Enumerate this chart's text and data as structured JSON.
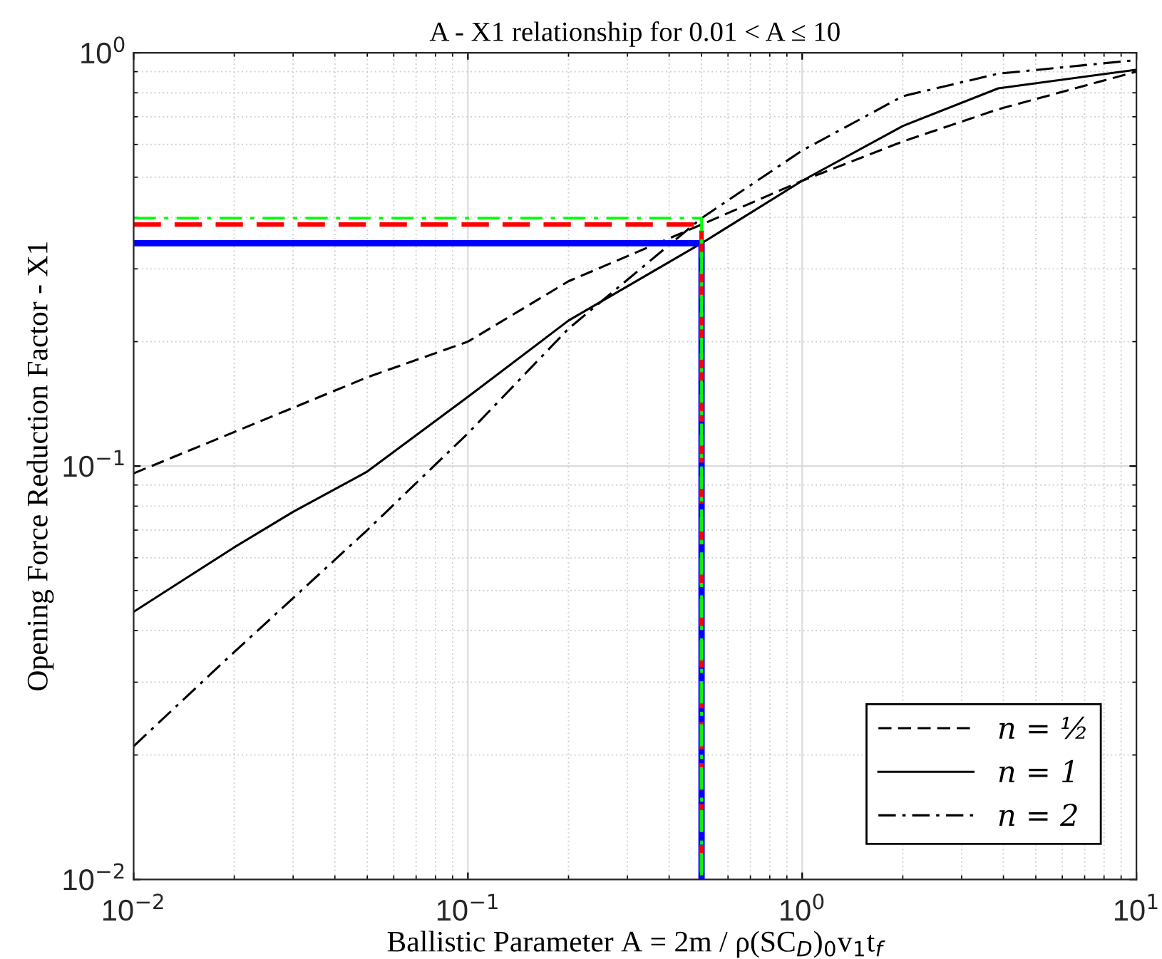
{
  "chart_data": {
    "type": "line",
    "title": "A - X1 relationship for 0.01 < A ≤ 10",
    "xlabel": "Ballistic Parameter A = 2m / ρ(SC$_{D}$)$_{0}$v$_{1}$t$_{f}$",
    "ylabel": "Opening Force Reduction Factor - X1",
    "log": "xy",
    "xlim": [
      0.01,
      10
    ],
    "ylim": [
      0.01,
      1
    ],
    "xticks": [
      {
        "value": 0.01,
        "label": "10$^{−2}$"
      },
      {
        "value": 0.1,
        "label": "10$^{−1}$"
      },
      {
        "value": 1,
        "label": "10$^{0}$"
      },
      {
        "value": 10,
        "label": "10$^{1}$"
      }
    ],
    "yticks": [
      {
        "value": 0.01,
        "label": "10$^{−2}$"
      },
      {
        "value": 0.1,
        "label": "10$^{−1}$"
      },
      {
        "value": 1,
        "label": "10$^{0}$"
      }
    ],
    "grid": true,
    "legend": "bottom right",
    "marker": "none",
    "series": [
      {
        "name": "n = ½",
        "color": "#000000",
        "line_style": "dashed",
        "x": [
          0.01,
          0.05,
          0.1,
          0.2,
          0.5,
          1,
          2,
          3.86,
          10
        ],
        "values": [
          0.096,
          0.164,
          0.2,
          0.28,
          0.384,
          0.49,
          0.61,
          0.73,
          0.9
        ]
      },
      {
        "name": "n = 1",
        "color": "#000000",
        "line_style": "solid",
        "x": [
          0.01,
          0.02,
          0.03,
          0.05,
          0.1,
          0.2,
          0.5,
          1,
          2,
          3.86,
          10
        ],
        "values": [
          0.0444,
          0.0636,
          0.0775,
          0.097,
          0.147,
          0.225,
          0.346,
          0.49,
          0.665,
          0.82,
          0.91
        ]
      },
      {
        "name": "n = 2",
        "color": "#000000",
        "line_style": "dashdot",
        "x": [
          0.01,
          0.02,
          0.05,
          0.1,
          0.2,
          0.5,
          1,
          2,
          3.86,
          10
        ],
        "values": [
          0.021,
          0.0355,
          0.07,
          0.12,
          0.215,
          0.398,
          0.58,
          0.785,
          0.89,
          0.96
        ]
      },
      {
        "color": "#0000ff",
        "line_style": "solid",
        "x": [
          0.01,
          0.5,
          0.5
        ],
        "values": [
          0.346,
          0.346,
          0.01
        ]
      },
      {
        "color": "#ff0000",
        "line_style": "dashed",
        "x": [
          0.01,
          0.5,
          0.5
        ],
        "values": [
          0.384,
          0.384,
          0.01
        ]
      },
      {
        "color": "#00ff00",
        "line_style": "dashdot",
        "x": [
          0.01,
          0.5,
          0.5
        ],
        "values": [
          0.398,
          0.398,
          0.01
        ]
      }
    ]
  }
}
